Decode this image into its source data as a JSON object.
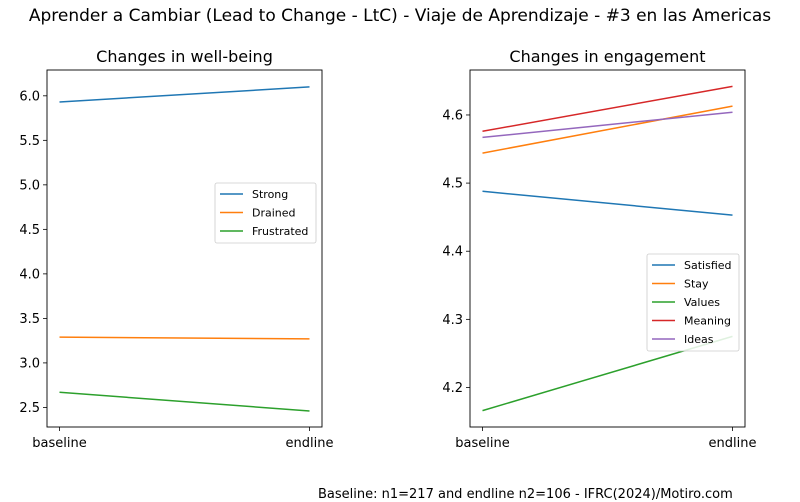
{
  "title": "Aprender a Cambiar (Lead to Change - LtC) - Viaje de Aprendizaje - #3 en las Americas",
  "footnote": "Baseline: n1=217 and endline n2=106 - IFRC(2024)/Motiro.com",
  "colors": {
    "blue": "#1f77b4",
    "orange": "#ff7f0e",
    "green": "#2ca02c",
    "red": "#d62728",
    "purple": "#9467bd"
  },
  "chart_data": [
    {
      "type": "line",
      "title": "Changes in well-being",
      "categories": [
        "baseline",
        "endline"
      ],
      "ylim": [
        2.28,
        6.29
      ],
      "yticks": [
        "2.5",
        "3.0",
        "3.5",
        "4.0",
        "4.5",
        "5.0",
        "5.5",
        "6.0"
      ],
      "grid": false,
      "legend_position": "center-right",
      "series": [
        {
          "name": "Strong",
          "color": "#1f77b4",
          "values": [
            5.93,
            6.1
          ]
        },
        {
          "name": "Drained",
          "color": "#ff7f0e",
          "values": [
            3.29,
            3.27
          ]
        },
        {
          "name": "Frustrated",
          "color": "#2ca02c",
          "values": [
            2.67,
            2.46
          ]
        }
      ]
    },
    {
      "type": "line",
      "title": "Changes in engagement",
      "categories": [
        "baseline",
        "endline"
      ],
      "ylim": [
        4.142,
        4.666
      ],
      "yticks": [
        "4.2",
        "4.3",
        "4.4",
        "4.5",
        "4.6"
      ],
      "grid": false,
      "legend_position": "lower-right",
      "series": [
        {
          "name": "Satisfied",
          "color": "#1f77b4",
          "values": [
            4.488,
            4.453
          ]
        },
        {
          "name": "Stay",
          "color": "#ff7f0e",
          "values": [
            4.544,
            4.613
          ]
        },
        {
          "name": "Values",
          "color": "#2ca02c",
          "values": [
            4.166,
            4.275
          ]
        },
        {
          "name": "Meaning",
          "color": "#d62728",
          "values": [
            4.576,
            4.642
          ]
        },
        {
          "name": "Ideas",
          "color": "#9467bd",
          "values": [
            4.567,
            4.604
          ]
        }
      ]
    }
  ]
}
